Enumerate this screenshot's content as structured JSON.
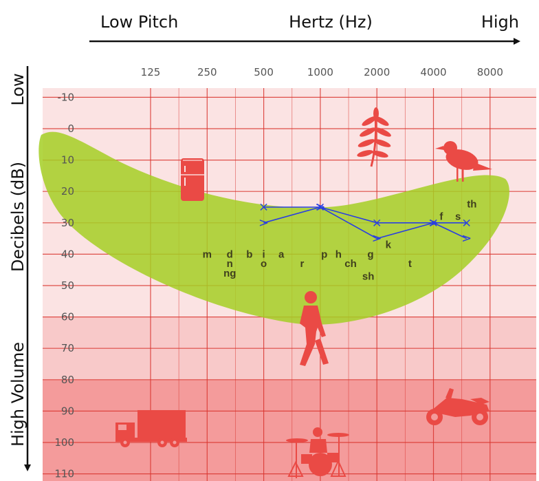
{
  "chart_data": {
    "type": "scatter",
    "title": "",
    "header": {
      "x_left": "Low Pitch",
      "x_center": "Hertz (Hz)",
      "x_right": "High",
      "y_top": "Low",
      "y_center": "Decibels (dB)",
      "y_bottom": "High Volume"
    },
    "x_ticks": [
      "125",
      "250",
      "500",
      "1000",
      "2000",
      "4000",
      "8000"
    ],
    "y_ticks": [
      "-10",
      "0",
      "10",
      "20",
      "30",
      "40",
      "50",
      "60",
      "70",
      "80",
      "90",
      "100",
      "110"
    ],
    "xscale": "log2",
    "ylim": [
      -15,
      115
    ],
    "y_inverted": true,
    "grid": true,
    "series": [
      {
        "marker": "x",
        "color": "#2a3fe0",
        "points": [
          {
            "x": 500,
            "y": 25
          },
          {
            "x": 1000,
            "y": 25
          },
          {
            "x": 2000,
            "y": 30
          },
          {
            "x": 4000,
            "y": 30
          },
          {
            "x": 6000,
            "y": 30
          }
        ]
      },
      {
        "marker": ">",
        "color": "#2a3fe0",
        "points": [
          {
            "x": 500,
            "y": 30
          },
          {
            "x": 1000,
            "y": 25
          },
          {
            "x": 2000,
            "y": 35
          },
          {
            "x": 4000,
            "y": 30
          },
          {
            "x": 6000,
            "y": 35
          }
        ]
      }
    ],
    "speech_sounds": [
      {
        "text": "m",
        "x": 250,
        "y": 40
      },
      {
        "text": "d",
        "x": 330,
        "y": 40
      },
      {
        "text": "n",
        "x": 330,
        "y": 43
      },
      {
        "text": "ng",
        "x": 330,
        "y": 46
      },
      {
        "text": "b",
        "x": 420,
        "y": 40
      },
      {
        "text": "i",
        "x": 500,
        "y": 40
      },
      {
        "text": "o",
        "x": 500,
        "y": 43
      },
      {
        "text": "a",
        "x": 620,
        "y": 40
      },
      {
        "text": "r",
        "x": 800,
        "y": 43
      },
      {
        "text": "p",
        "x": 1050,
        "y": 40
      },
      {
        "text": "h",
        "x": 1250,
        "y": 40
      },
      {
        "text": "ch",
        "x": 1450,
        "y": 43
      },
      {
        "text": "g",
        "x": 1850,
        "y": 40
      },
      {
        "text": "sh",
        "x": 1800,
        "y": 47
      },
      {
        "text": "k",
        "x": 2300,
        "y": 37
      },
      {
        "text": "t",
        "x": 3000,
        "y": 43
      },
      {
        "text": "f",
        "x": 4400,
        "y": 28
      },
      {
        "text": "s",
        "x": 5400,
        "y": 28
      },
      {
        "text": "th",
        "x": 6400,
        "y": 24
      }
    ],
    "colors": {
      "speech_banana": "#a4cf25",
      "grid": "#d9342e",
      "zone_light": "#fbe3e3",
      "zone_mid": "#f8c9c9",
      "zone_dark": "#f49b9b",
      "icon": "#ea4a45",
      "symbol": "#2a3fe0"
    },
    "icons": [
      {
        "name": "refrigerator-icon",
        "x": 250,
        "y": 15
      },
      {
        "name": "leaves-icon",
        "x": 2000,
        "y": 5
      },
      {
        "name": "bird-icon",
        "x": 5000,
        "y": 12
      },
      {
        "name": "person-walking-icon",
        "x": 1000,
        "y": 70
      },
      {
        "name": "truck-icon",
        "x": 160,
        "y": 98
      },
      {
        "name": "drum-kit-icon",
        "x": 1000,
        "y": 110
      },
      {
        "name": "motorcycle-icon",
        "x": 5000,
        "y": 93
      }
    ]
  }
}
